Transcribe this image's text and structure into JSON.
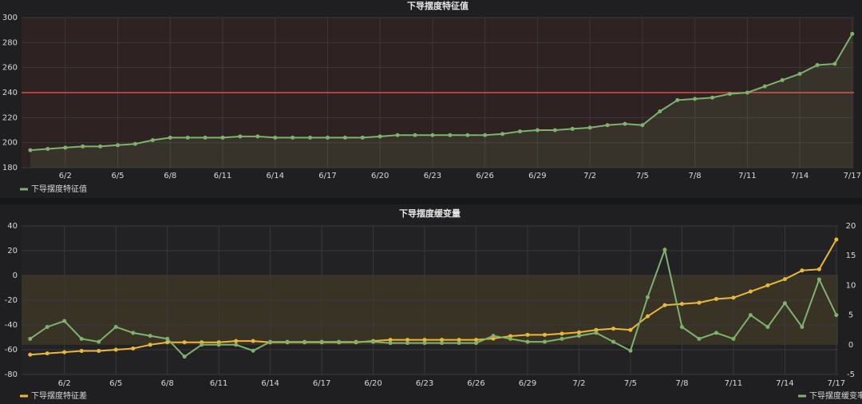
{
  "chart_data": [
    {
      "type": "line",
      "title": "下导摆度特征值",
      "x": [
        "5/31",
        "6/1",
        "6/2",
        "6/3",
        "6/4",
        "6/5",
        "6/6",
        "6/7",
        "6/8",
        "6/9",
        "6/10",
        "6/11",
        "6/12",
        "6/13",
        "6/14",
        "6/15",
        "6/16",
        "6/17",
        "6/18",
        "6/19",
        "6/20",
        "6/21",
        "6/22",
        "6/23",
        "6/24",
        "6/25",
        "6/26",
        "6/27",
        "6/28",
        "6/29",
        "6/30",
        "7/1",
        "7/2",
        "7/3",
        "7/4",
        "7/5",
        "7/6",
        "7/7",
        "7/8",
        "7/9",
        "7/10",
        "7/11",
        "7/12",
        "7/13",
        "7/14",
        "7/15",
        "7/16",
        "7/17"
      ],
      "xticks": [
        "6/2",
        "6/5",
        "6/8",
        "6/11",
        "6/14",
        "6/17",
        "6/20",
        "6/23",
        "6/26",
        "6/29",
        "7/2",
        "7/5",
        "7/8",
        "7/11",
        "7/14",
        "7/17"
      ],
      "series": [
        {
          "name": "下导摆度特征值",
          "color": "#7eb26d",
          "values": [
            194,
            195,
            196,
            197,
            197,
            198,
            199,
            202,
            204,
            204,
            204,
            204,
            205,
            205,
            204,
            204,
            204,
            204,
            204,
            204,
            205,
            206,
            206,
            206,
            206,
            206,
            206,
            207,
            209,
            210,
            210,
            211,
            212,
            214,
            215,
            214,
            225,
            234,
            235,
            236,
            239,
            240,
            245,
            250,
            255,
            262,
            263,
            287
          ]
        }
      ],
      "ylim": [
        180,
        300
      ],
      "yticks": [
        180,
        200,
        220,
        240,
        260,
        280,
        300
      ],
      "threshold": 240,
      "grid": true
    },
    {
      "type": "line",
      "title": "下导摆度缓变量",
      "x": [
        "5/31",
        "6/1",
        "6/2",
        "6/3",
        "6/4",
        "6/5",
        "6/6",
        "6/7",
        "6/8",
        "6/9",
        "6/10",
        "6/11",
        "6/12",
        "6/13",
        "6/14",
        "6/15",
        "6/16",
        "6/17",
        "6/18",
        "6/19",
        "6/20",
        "6/21",
        "6/22",
        "6/23",
        "6/24",
        "6/25",
        "6/26",
        "6/27",
        "6/28",
        "6/29",
        "6/30",
        "7/1",
        "7/2",
        "7/3",
        "7/4",
        "7/5",
        "7/6",
        "7/7",
        "7/8",
        "7/9",
        "7/10",
        "7/11",
        "7/12",
        "7/13",
        "7/14",
        "7/15",
        "7/16",
        "7/17"
      ],
      "xticks": [
        "6/2",
        "6/5",
        "6/8",
        "6/11",
        "6/14",
        "6/17",
        "6/20",
        "6/23",
        "6/26",
        "6/29",
        "7/2",
        "7/5",
        "7/8",
        "7/11",
        "7/14",
        "7/17"
      ],
      "series": [
        {
          "name": "下导摆度特征差",
          "color": "#eab839",
          "axis": "y",
          "values": [
            -64,
            -63,
            -62,
            -61,
            -61,
            -60,
            -59,
            -56,
            -54,
            -54,
            -54,
            -54,
            -53,
            -53,
            -54,
            -54,
            -54,
            -54,
            -54,
            -54,
            -53,
            -52,
            -52,
            -52,
            -52,
            -52,
            -52,
            -51,
            -49,
            -48,
            -48,
            -47,
            -46,
            -44,
            -43,
            -44,
            -33,
            -24,
            -23,
            -22,
            -19,
            -18,
            -13,
            -8,
            -3,
            4,
            5,
            29
          ]
        },
        {
          "name": "下导摆度缓变率",
          "color": "#7eb26d",
          "axis": "y2",
          "values": [
            1,
            3,
            4,
            1,
            0.5,
            3,
            2,
            1.5,
            1,
            -2,
            0,
            0,
            0,
            -1,
            0.5,
            0.5,
            0.5,
            0.5,
            0.5,
            0.5,
            0.5,
            0.3,
            0.3,
            0.3,
            0.3,
            0.3,
            0.3,
            1.5,
            1,
            0.5,
            0.5,
            1,
            1.5,
            2,
            0.5,
            -1,
            8,
            16,
            3,
            1,
            2,
            1,
            5,
            3,
            7,
            3,
            11,
            5
          ]
        }
      ],
      "ylim": [
        -80,
        40
      ],
      "yticks": [
        -80,
        -60,
        -40,
        -20,
        0,
        20,
        40
      ],
      "y2lim": [
        -5,
        20
      ],
      "y2ticks": [
        -5,
        0,
        5,
        10,
        15,
        20
      ],
      "threshold_band": [
        -56,
        0
      ],
      "grid": true
    }
  ]
}
